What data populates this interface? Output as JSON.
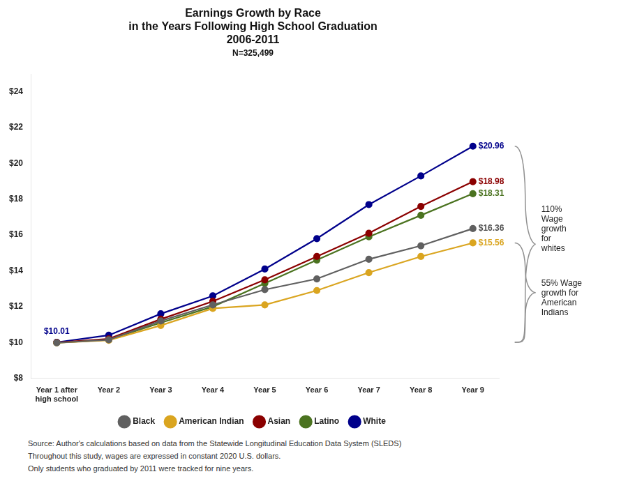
{
  "chart_data": {
    "type": "line",
    "title": [
      "Earnings Growth by Race",
      "in the Years Following High School Graduation",
      "2006-2011"
    ],
    "subtitle": "N=325,499",
    "categories": [
      "Year 1 after\nhigh school",
      "Year 2",
      "Year 3",
      "Year 4",
      "Year 5",
      "Year 6",
      "Year 7",
      "Year 8",
      "Year 9"
    ],
    "series": [
      {
        "name": "Black",
        "color": "#606060",
        "values": [
          9.98,
          10.15,
          11.2,
          12.1,
          12.95,
          13.55,
          14.65,
          15.4,
          16.36
        ]
      },
      {
        "name": "American Indian",
        "color": "#DAA520",
        "values": [
          9.98,
          10.12,
          10.95,
          11.9,
          12.1,
          12.9,
          13.9,
          14.8,
          15.56
        ]
      },
      {
        "name": "Asian",
        "color": "#8B0000",
        "values": [
          10.0,
          10.2,
          11.3,
          12.3,
          13.5,
          14.8,
          16.1,
          17.6,
          18.98
        ]
      },
      {
        "name": "Latino",
        "color": "#4B7320",
        "values": [
          9.98,
          10.15,
          11.1,
          12.0,
          13.3,
          14.6,
          15.9,
          17.1,
          18.31
        ]
      },
      {
        "name": "White",
        "color": "#00008B",
        "values": [
          10.01,
          10.4,
          11.6,
          12.6,
          14.1,
          15.8,
          17.7,
          19.3,
          20.96
        ]
      }
    ],
    "ylim": [
      8,
      25
    ],
    "yticks": [
      {
        "value": 8,
        "label": "$8"
      },
      {
        "value": 10,
        "label": "$10"
      },
      {
        "value": 12,
        "label": "$12"
      },
      {
        "value": 14,
        "label": "$14"
      },
      {
        "value": 16,
        "label": "$16"
      },
      {
        "value": 18,
        "label": "$18"
      },
      {
        "value": 20,
        "label": "$20"
      },
      {
        "value": 22,
        "label": "$22"
      },
      {
        "value": 24,
        "label": "$24"
      }
    ],
    "grid": false,
    "legend": "bottom",
    "marker": "circle",
    "annotations": [
      {
        "text": "$10.01",
        "x": "Year 1 after\nhigh school",
        "y": 10.01,
        "color": "#00008B",
        "position": "above"
      },
      {
        "text": "$20.96",
        "x": "Year 9",
        "y": 20.96,
        "color": "#00008B",
        "position": "right"
      },
      {
        "text": "$18.98",
        "x": "Year 9",
        "y": 18.98,
        "color": "#8B0000",
        "position": "right"
      },
      {
        "text": "$18.31",
        "x": "Year 9",
        "y": 18.31,
        "color": "#4B7320",
        "position": "right"
      },
      {
        "text": "$16.36",
        "x": "Year 9",
        "y": 16.36,
        "color": "#505050",
        "position": "right"
      },
      {
        "text": "$15.56",
        "x": "Year 9",
        "y": 15.56,
        "color": "#DAA520",
        "position": "right"
      }
    ],
    "brackets": [
      {
        "text": "110%\nWage\ngrowth\nfor\nwhites",
        "from": 10.01,
        "to": 20.96,
        "color": "#909090"
      },
      {
        "text": "55% Wage\ngrowth for\nAmerican\nIndians",
        "from": 10.01,
        "to": 15.56,
        "color": "#909090"
      }
    ],
    "footnotes": [
      "Source: Author's calculations based on data from the Statewide Longitudinal Education Data System (SLEDS)",
      "Throughout this study, wages are expressed in constant 2020 U.S. dollars.",
      "Only students who graduated by 2011 were tracked for nine years."
    ]
  }
}
